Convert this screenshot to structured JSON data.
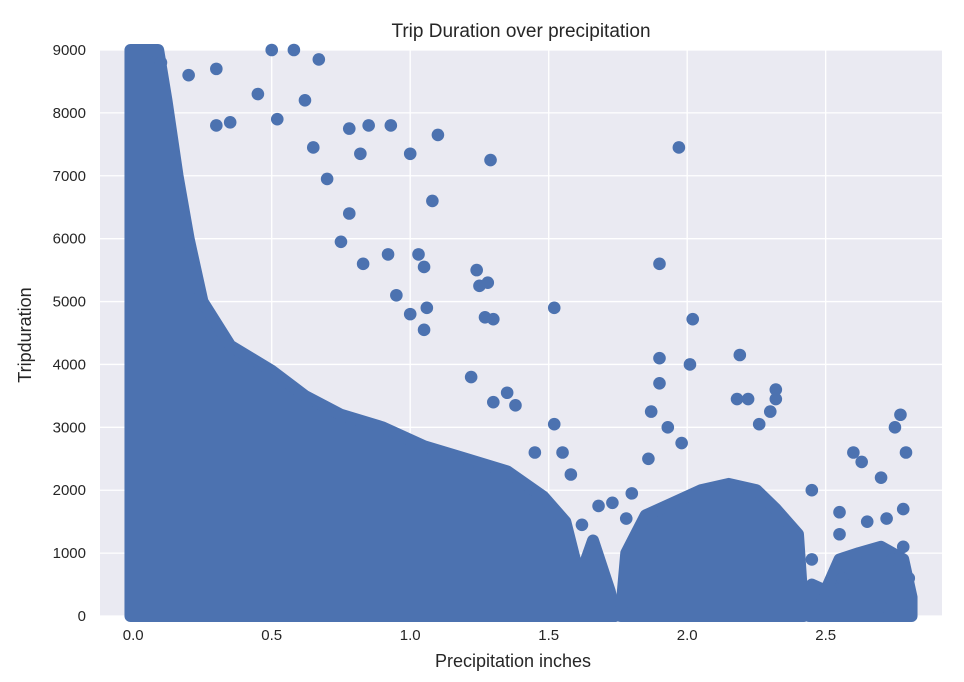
{
  "chart_data": {
    "type": "scatter",
    "title": "Trip Duration over precipitation",
    "xlabel": "Precipitation inches",
    "ylabel": "Tripduration",
    "xlim": [
      -0.12,
      2.92
    ],
    "ylim": [
      0,
      9000
    ],
    "xticks": [
      "0.0",
      "0.5",
      "1.0",
      "1.5",
      "2.0",
      "2.5"
    ],
    "yticks": [
      "0",
      "1000",
      "2000",
      "3000",
      "4000",
      "5000",
      "6000",
      "7000",
      "8000",
      "9000"
    ],
    "grid": true,
    "background_color": "#eaeaf2",
    "marker_color": "#4c72b0",
    "sampled_points": [
      {
        "x": 0.05,
        "y": 8950
      },
      {
        "x": 0.1,
        "y": 8800
      },
      {
        "x": 0.2,
        "y": 8600
      },
      {
        "x": 0.3,
        "y": 8700
      },
      {
        "x": 0.5,
        "y": 9000
      },
      {
        "x": 0.58,
        "y": 9000
      },
      {
        "x": 0.67,
        "y": 8850
      },
      {
        "x": 0.62,
        "y": 8200
      },
      {
        "x": 0.45,
        "y": 8300
      },
      {
        "x": 0.52,
        "y": 7900
      },
      {
        "x": 0.3,
        "y": 7800
      },
      {
        "x": 0.35,
        "y": 7850
      },
      {
        "x": 0.78,
        "y": 7750
      },
      {
        "x": 0.85,
        "y": 7800
      },
      {
        "x": 0.93,
        "y": 7800
      },
      {
        "x": 1.1,
        "y": 7650
      },
      {
        "x": 0.82,
        "y": 7350
      },
      {
        "x": 1.0,
        "y": 7350
      },
      {
        "x": 1.29,
        "y": 7250
      },
      {
        "x": 1.97,
        "y": 7450
      },
      {
        "x": 0.65,
        "y": 7450
      },
      {
        "x": 0.7,
        "y": 6950
      },
      {
        "x": 0.78,
        "y": 6400
      },
      {
        "x": 0.75,
        "y": 5950
      },
      {
        "x": 1.08,
        "y": 6600
      },
      {
        "x": 0.92,
        "y": 5750
      },
      {
        "x": 1.03,
        "y": 5750
      },
      {
        "x": 1.05,
        "y": 5550
      },
      {
        "x": 0.83,
        "y": 5600
      },
      {
        "x": 1.24,
        "y": 5500
      },
      {
        "x": 1.25,
        "y": 5250
      },
      {
        "x": 1.28,
        "y": 5300
      },
      {
        "x": 1.27,
        "y": 4750
      },
      {
        "x": 1.3,
        "y": 4720
      },
      {
        "x": 1.52,
        "y": 4900
      },
      {
        "x": 1.06,
        "y": 4900
      },
      {
        "x": 1.0,
        "y": 4800
      },
      {
        "x": 0.95,
        "y": 5100
      },
      {
        "x": 1.05,
        "y": 4550
      },
      {
        "x": 1.9,
        "y": 5600
      },
      {
        "x": 2.02,
        "y": 4720
      },
      {
        "x": 2.19,
        "y": 4150
      },
      {
        "x": 1.9,
        "y": 4100
      },
      {
        "x": 2.01,
        "y": 4000
      },
      {
        "x": 1.9,
        "y": 3700
      },
      {
        "x": 1.22,
        "y": 3800
      },
      {
        "x": 1.35,
        "y": 3550
      },
      {
        "x": 1.3,
        "y": 3400
      },
      {
        "x": 1.38,
        "y": 3350
      },
      {
        "x": 1.52,
        "y": 3050
      },
      {
        "x": 1.45,
        "y": 2600
      },
      {
        "x": 1.55,
        "y": 2600
      },
      {
        "x": 1.58,
        "y": 2250
      },
      {
        "x": 1.87,
        "y": 3250
      },
      {
        "x": 1.93,
        "y": 3000
      },
      {
        "x": 1.98,
        "y": 2750
      },
      {
        "x": 2.22,
        "y": 3450
      },
      {
        "x": 2.18,
        "y": 3450
      },
      {
        "x": 2.32,
        "y": 3600
      },
      {
        "x": 2.32,
        "y": 3450
      },
      {
        "x": 2.3,
        "y": 3250
      },
      {
        "x": 2.26,
        "y": 3050
      },
      {
        "x": 2.45,
        "y": 2000
      },
      {
        "x": 2.6,
        "y": 2600
      },
      {
        "x": 2.63,
        "y": 2450
      },
      {
        "x": 2.75,
        "y": 3000
      },
      {
        "x": 2.77,
        "y": 3200
      },
      {
        "x": 2.79,
        "y": 2600
      },
      {
        "x": 2.7,
        "y": 2200
      },
      {
        "x": 2.78,
        "y": 1700
      },
      {
        "x": 2.72,
        "y": 1550
      },
      {
        "x": 2.65,
        "y": 1500
      },
      {
        "x": 2.78,
        "y": 1100
      },
      {
        "x": 2.74,
        "y": 900
      },
      {
        "x": 2.8,
        "y": 600
      },
      {
        "x": 2.8,
        "y": 200
      },
      {
        "x": 2.7,
        "y": 150
      },
      {
        "x": 2.56,
        "y": 600
      },
      {
        "x": 2.52,
        "y": 400
      },
      {
        "x": 2.45,
        "y": 900
      },
      {
        "x": 2.55,
        "y": 1650
      },
      {
        "x": 2.55,
        "y": 1300
      },
      {
        "x": 1.68,
        "y": 1750
      },
      {
        "x": 1.73,
        "y": 1800
      },
      {
        "x": 1.78,
        "y": 1550
      },
      {
        "x": 1.8,
        "y": 1950
      },
      {
        "x": 1.86,
        "y": 2500
      },
      {
        "x": 1.62,
        "y": 1450
      }
    ]
  }
}
